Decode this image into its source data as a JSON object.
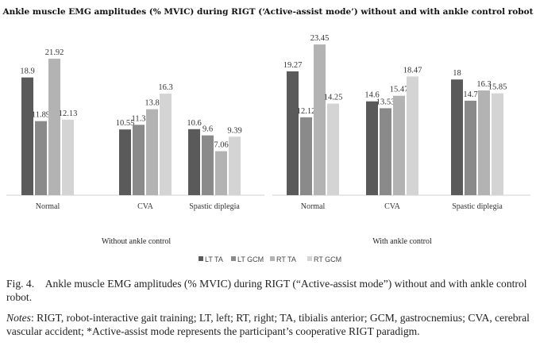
{
  "figure": {
    "title": "Ankle muscle EMG amplitudes (% MVIC) during RIGT (‘Active-assist mode’) without and with ankle control robot",
    "caption": "Fig. 4. Ankle muscle EMG amplitudes (% MVIC) during RIGT (“Active-assist mode”) without and with ankle control robot.",
    "notes_label": "Notes",
    "notes_text": ": RIGT, robot-interactive gait training; LT, left; RT, right; TA, tibialis anterior; GCM, gastrocnemius; CVA, cerebral vascular accident; *Active-assist mode represents the participant’s cooperative RIGT paradigm."
  },
  "chart_data": [
    {
      "type": "bar",
      "xlabel": "Without ankle control",
      "categories": [
        "Normal",
        "CVA",
        "Spastic diplegia"
      ],
      "series": [
        {
          "name": "LT TA",
          "values": [
            18.9,
            10.55,
            10.6
          ]
        },
        {
          "name": "LT GCM",
          "values": [
            11.89,
            11.3,
            9.6
          ]
        },
        {
          "name": "RT TA",
          "values": [
            21.92,
            13.8,
            7.06
          ]
        },
        {
          "name": "RT GCM",
          "values": [
            12.13,
            16.3,
            9.39
          ]
        }
      ],
      "labels": [
        [
          "18.9",
          "10.55",
          "10.6"
        ],
        [
          "11.89",
          "11.3",
          "9.6"
        ],
        [
          "21.92",
          "13.8",
          "7.06"
        ],
        [
          "12.13",
          "16.3",
          "9.39"
        ]
      ],
      "ylim": [
        0,
        25
      ],
      "grid": false
    },
    {
      "type": "bar",
      "xlabel": "With ankle control",
      "categories": [
        "Normal",
        "CVA",
        "Spastic diplegia"
      ],
      "series": [
        {
          "name": "LT TA",
          "values": [
            19.27,
            14.6,
            18
          ]
        },
        {
          "name": "LT GCM",
          "values": [
            12.12,
            13.53,
            14.7
          ]
        },
        {
          "name": "RT TA",
          "values": [
            23.45,
            15.47,
            16.3
          ]
        },
        {
          "name": "RT GCM",
          "values": [
            14.25,
            18.47,
            15.85
          ]
        }
      ],
      "labels": [
        [
          "19.27",
          "14.6",
          "18"
        ],
        [
          "12.12",
          "13.53",
          "14.7"
        ],
        [
          "23.45",
          "15.47",
          "16.3"
        ],
        [
          "14.25",
          "18.47",
          "15.85"
        ]
      ],
      "ylim": [
        0,
        25
      ],
      "grid": false
    }
  ],
  "legend": {
    "position": "bottom",
    "items": [
      {
        "label": "LT TA",
        "color": "#5a5a5a"
      },
      {
        "label": "LT GCM",
        "color": "#8a8a8a"
      },
      {
        "label": "RT TA",
        "color": "#b3b3b3"
      },
      {
        "label": "RT GCM",
        "color": "#d4d4d4"
      }
    ]
  }
}
